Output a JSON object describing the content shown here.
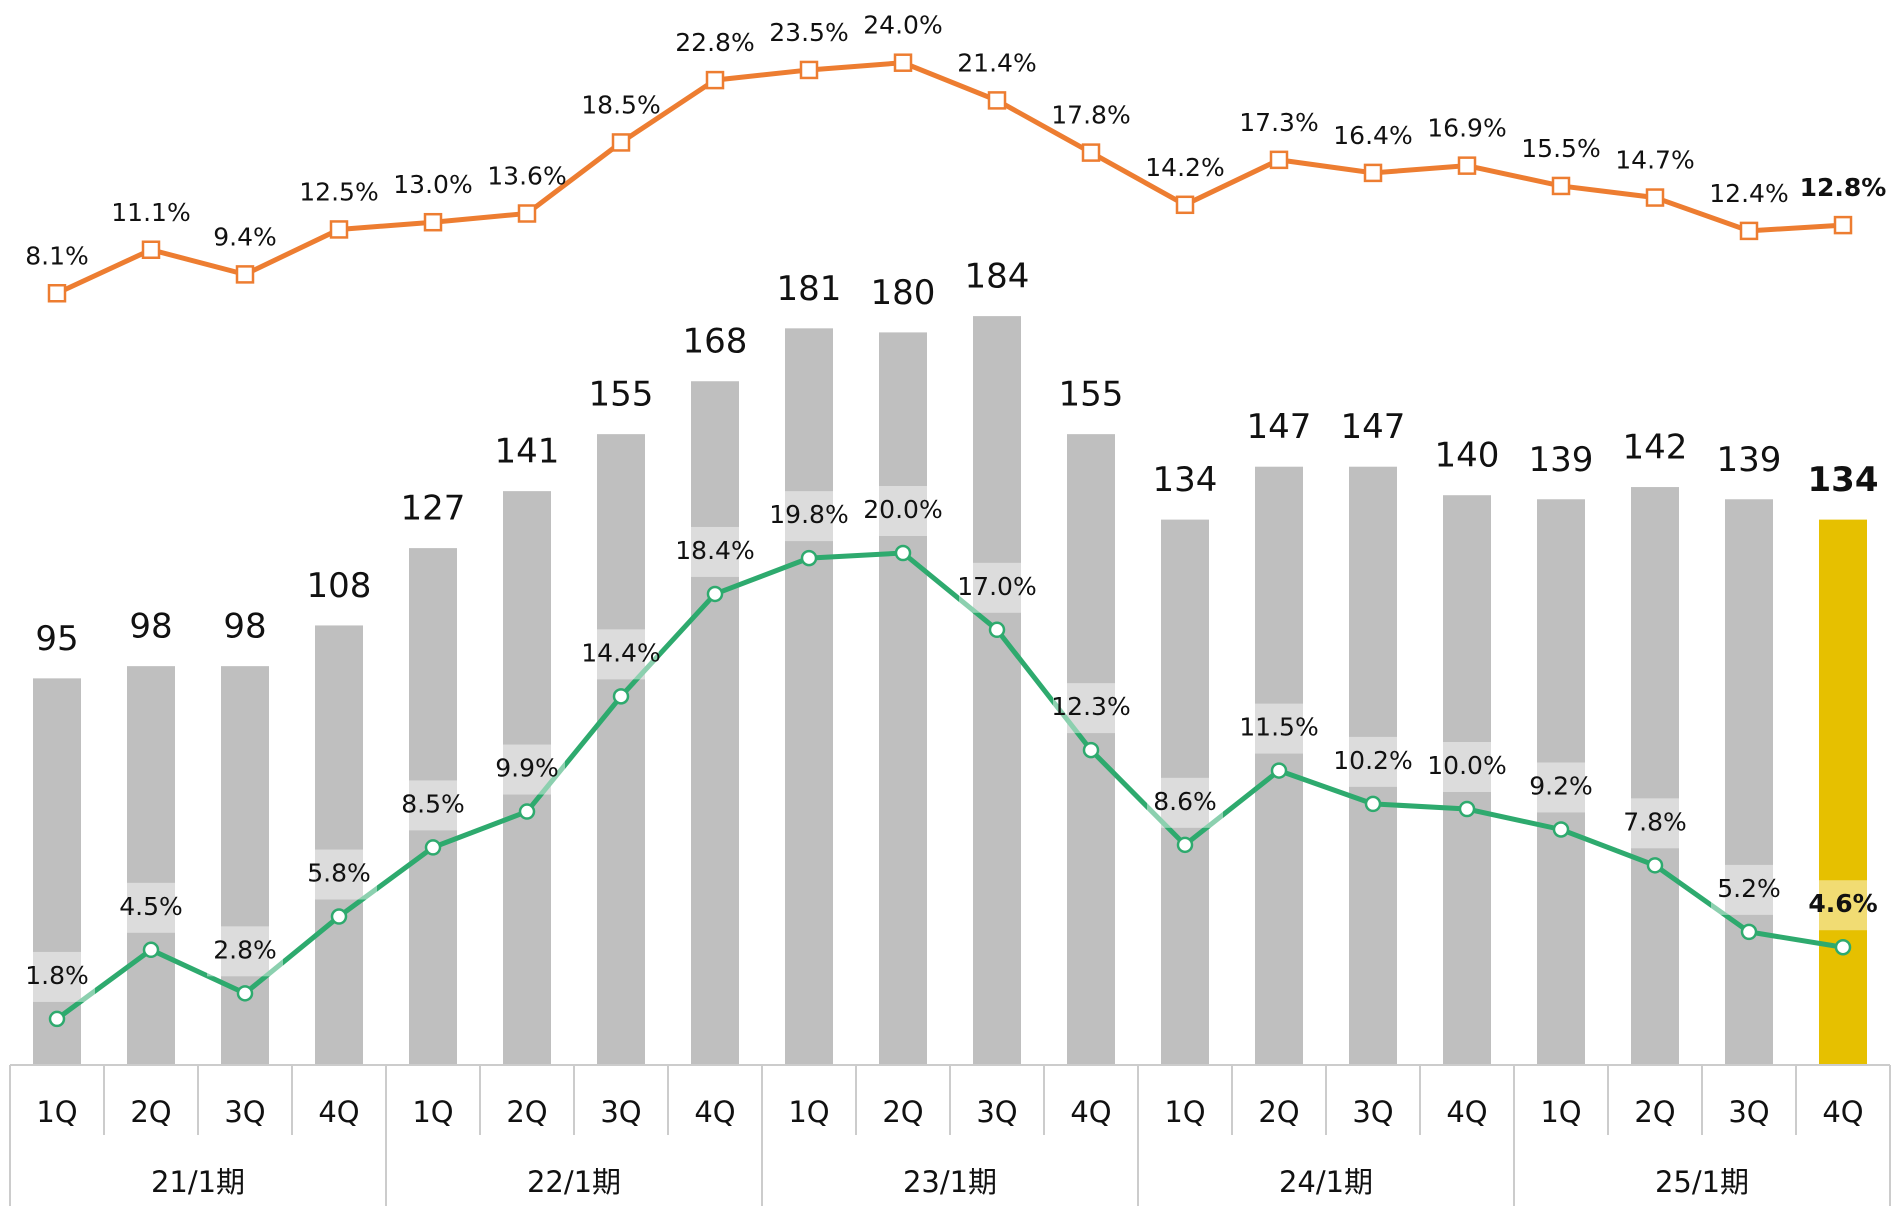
{
  "chart_data": {
    "type": "bar",
    "categories": [
      "1Q",
      "2Q",
      "3Q",
      "4Q",
      "1Q",
      "2Q",
      "3Q",
      "4Q",
      "1Q",
      "2Q",
      "3Q",
      "4Q",
      "1Q",
      "2Q",
      "3Q",
      "4Q",
      "1Q",
      "2Q",
      "3Q",
      "4Q"
    ],
    "groups": [
      "21/1期",
      "22/1期",
      "23/1期",
      "24/1期",
      "25/1期"
    ],
    "values": [
      95,
      98,
      98,
      108,
      127,
      141,
      155,
      168,
      181,
      180,
      184,
      155,
      134,
      147,
      147,
      140,
      139,
      142,
      139,
      134
    ],
    "colors": [
      "#bfbfbf",
      "#bfbfbf",
      "#bfbfbf",
      "#bfbfbf",
      "#bfbfbf",
      "#bfbfbf",
      "#bfbfbf",
      "#bfbfbf",
      "#bfbfbf",
      "#bfbfbf",
      "#bfbfbf",
      "#bfbfbf",
      "#bfbfbf",
      "#bfbfbf",
      "#bfbfbf",
      "#bfbfbf",
      "#bfbfbf",
      "#bfbfbf",
      "#bfbfbf",
      "#e6c000"
    ],
    "series": [
      {
        "color": "#ed7d31",
        "values": [
          8.1,
          11.1,
          9.4,
          12.5,
          13.0,
          13.6,
          18.5,
          22.8,
          23.5,
          24.0,
          21.4,
          17.8,
          14.2,
          17.3,
          16.4,
          16.9,
          15.5,
          14.7,
          12.4,
          12.8
        ],
        "value_labels": [
          "8.1%",
          "11.1%",
          "9.4%",
          "12.5%",
          "13.0%",
          "13.6%",
          "18.5%",
          "22.8%",
          "23.5%",
          "24.0%",
          "21.4%",
          "17.8%",
          "14.2%",
          "17.3%",
          "16.4%",
          "16.9%",
          "15.5%",
          "14.7%",
          "12.4%",
          "12.8%"
        ]
      },
      {
        "color": "#2eaa6e",
        "values": [
          1.8,
          4.5,
          2.8,
          5.8,
          8.5,
          9.9,
          14.4,
          18.4,
          19.8,
          20.0,
          17.0,
          12.3,
          8.6,
          11.5,
          10.2,
          10.0,
          9.2,
          7.8,
          5.2,
          4.6
        ],
        "value_labels": [
          "1.8%",
          "4.5%",
          "2.8%",
          "5.8%",
          "8.5%",
          "9.9%",
          "14.4%",
          "18.4%",
          "19.8%",
          "20.0%",
          "17.0%",
          "12.3%",
          "8.6%",
          "11.5%",
          "10.2%",
          "10.0%",
          "9.2%",
          "7.8%",
          "5.2%",
          "4.6%"
        ]
      }
    ]
  }
}
